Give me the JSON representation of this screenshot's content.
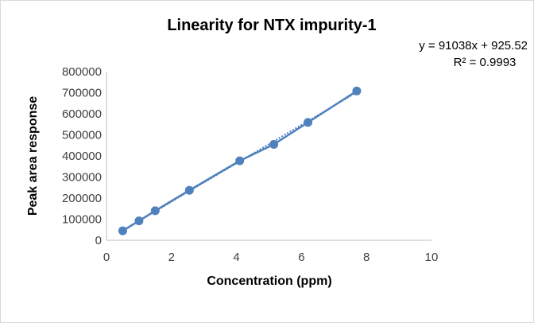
{
  "chart_data": {
    "type": "scatter",
    "title": "Linearity for NTX impurity-1",
    "xlabel": "Concentration (ppm)",
    "ylabel": "Peak area response",
    "xlim": [
      0,
      10
    ],
    "ylim": [
      0,
      800000
    ],
    "xticks": [
      "0",
      "2",
      "4",
      "6",
      "8",
      "10"
    ],
    "yticks": [
      "0",
      "100000",
      "200000",
      "300000",
      "400000",
      "500000",
      "600000",
      "700000",
      "800000"
    ],
    "grid": false,
    "legend": "none",
    "series": [
      {
        "x": [
          0.5,
          1.0,
          1.5,
          2.55,
          4.1,
          5.15,
          6.2,
          7.7
        ],
        "y": [
          45000,
          92000,
          140000,
          237000,
          377000,
          455000,
          559000,
          708000
        ]
      }
    ],
    "trendline": {
      "type": "linear",
      "slope": 91038,
      "intercept": 925.52,
      "equation": "y = 91038x + 925.52",
      "r_squared": "R² = 0.9993"
    },
    "colors": {
      "series": "#4f81bd"
    }
  }
}
